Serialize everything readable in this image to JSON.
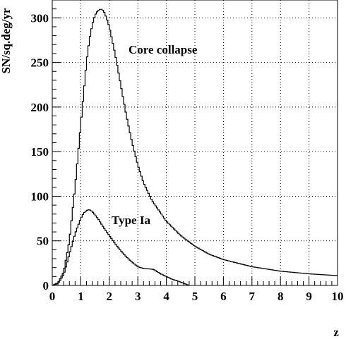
{
  "chart_data": {
    "type": "line",
    "title": "",
    "xlabel": "z",
    "ylabel": "SN/sq.deg/yr",
    "xlim": [
      0,
      10
    ],
    "ylim": [
      0,
      320
    ],
    "x_ticks": [
      "0",
      "1",
      "2",
      "3",
      "4",
      "5",
      "6",
      "7",
      "8",
      "9",
      "10"
    ],
    "y_ticks": [
      "0",
      "50",
      "100",
      "150",
      "200",
      "250",
      "300"
    ],
    "grid": true,
    "style": "step",
    "series": [
      {
        "name": "Core collapse",
        "x": [
          0.0,
          0.2,
          0.4,
          0.6,
          0.8,
          1.0,
          1.1,
          1.2,
          1.3,
          1.4,
          1.5,
          1.6,
          1.7,
          1.8,
          1.9,
          2.0,
          2.2,
          2.4,
          2.6,
          2.8,
          3.0,
          3.2,
          3.5,
          4.0,
          4.5,
          5.0,
          5.5,
          6.0,
          7.0,
          8.0,
          9.0,
          10.0
        ],
        "y": [
          0,
          3,
          15,
          50,
          110,
          180,
          215,
          250,
          275,
          292,
          303,
          308,
          310,
          308,
          300,
          290,
          260,
          225,
          190,
          160,
          135,
          115,
          95,
          72,
          56,
          44,
          35,
          29,
          21,
          16,
          13,
          11
        ]
      },
      {
        "name": "Type Ia",
        "x": [
          0.0,
          0.2,
          0.4,
          0.6,
          0.8,
          1.0,
          1.1,
          1.2,
          1.3,
          1.4,
          1.5,
          1.6,
          1.8,
          2.0,
          2.2,
          2.4,
          2.6,
          2.8,
          3.0,
          3.2,
          3.4,
          3.55,
          3.8,
          4.0,
          4.2,
          4.4,
          4.6,
          4.8
        ],
        "y": [
          0,
          2,
          12,
          35,
          58,
          75,
          81,
          84,
          85,
          83,
          79,
          75,
          65,
          56,
          47,
          39,
          32,
          26,
          21,
          19,
          18.5,
          18,
          13,
          10,
          7,
          5,
          2.5,
          0
        ]
      }
    ],
    "annotations": [
      "Core collapse",
      "Type Ia"
    ]
  }
}
